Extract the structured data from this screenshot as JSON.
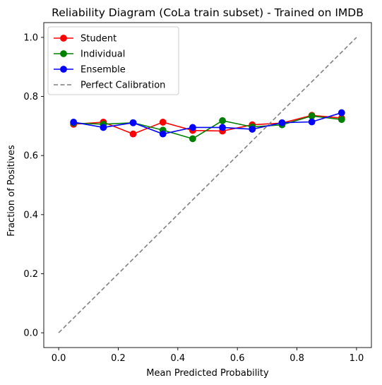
{
  "chart_data": {
    "type": "line",
    "title": "Reliability Diagram (CoLa train subset) - Trained on IMDB",
    "xlabel": "Mean Predicted Probability",
    "ylabel": "Fraction of Positives",
    "xlim": [
      -0.05,
      1.05
    ],
    "ylim": [
      -0.05,
      1.05
    ],
    "xticks": [
      "0.0",
      "0.2",
      "0.4",
      "0.6",
      "0.8",
      "1.0"
    ],
    "yticks": [
      "0.0",
      "0.2",
      "0.4",
      "0.6",
      "0.8",
      "1.0"
    ],
    "grid": false,
    "legend_position": "top-left",
    "series": [
      {
        "name": "Student",
        "color": "#ff0000",
        "marker": "circle",
        "x": [
          0.05,
          0.15,
          0.25,
          0.35,
          0.45,
          0.55,
          0.65,
          0.75,
          0.85,
          0.95
        ],
        "y": [
          0.706,
          0.713,
          0.673,
          0.713,
          0.685,
          0.683,
          0.704,
          0.71,
          0.736,
          0.727
        ]
      },
      {
        "name": "Individual",
        "color": "#008000",
        "marker": "circle",
        "x": [
          0.05,
          0.15,
          0.25,
          0.35,
          0.45,
          0.55,
          0.65,
          0.75,
          0.85,
          0.95
        ],
        "y": [
          0.71,
          0.706,
          0.711,
          0.686,
          0.657,
          0.718,
          0.697,
          0.704,
          0.734,
          0.722
        ]
      },
      {
        "name": "Ensemble",
        "color": "#0000ff",
        "marker": "circle",
        "x": [
          0.05,
          0.15,
          0.25,
          0.35,
          0.45,
          0.55,
          0.65,
          0.75,
          0.85,
          0.95
        ],
        "y": [
          0.713,
          0.695,
          0.711,
          0.673,
          0.695,
          0.695,
          0.689,
          0.711,
          0.714,
          0.745
        ]
      },
      {
        "name": "Perfect Calibration",
        "color": "#808080",
        "style": "dashed",
        "x": [
          0,
          1
        ],
        "y": [
          0,
          1
        ]
      }
    ]
  }
}
